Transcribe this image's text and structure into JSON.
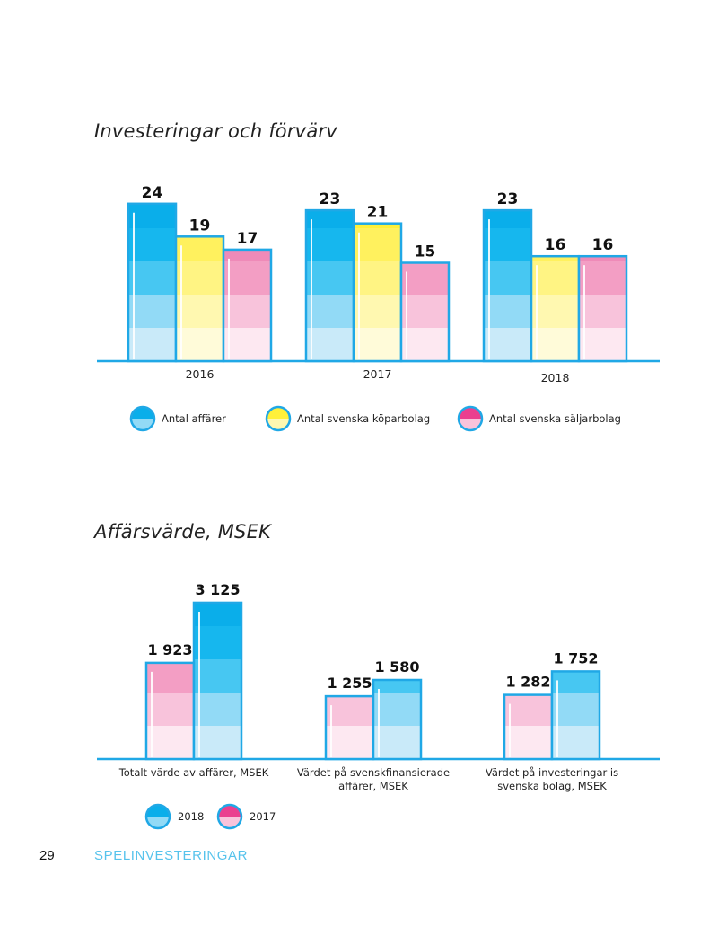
{
  "page": {
    "number": "29",
    "section": "SPELINVESTERINGAR"
  },
  "colors": {
    "blue": "#0fb2ea",
    "yellow": "#fff23a",
    "pink": "#ea5c9c",
    "border": "#20a8e6"
  },
  "chart_data": [
    {
      "type": "bar",
      "title": "Investeringar och förvärv",
      "categories": [
        "2016",
        "2017",
        "2018"
      ],
      "series": [
        {
          "name": "Antal affärer",
          "color": "blue",
          "values": [
            24,
            23,
            23
          ],
          "labels": [
            "24",
            "23",
            "23"
          ]
        },
        {
          "name": "Antal svenska köparbolag",
          "color": "yellow",
          "values": [
            19,
            21,
            16
          ],
          "labels": [
            "19",
            "21",
            "16"
          ]
        },
        {
          "name": "Antal svenska säljarbolag",
          "color": "pink",
          "values": [
            17,
            15,
            16
          ],
          "labels": [
            "17",
            "15",
            "16"
          ]
        }
      ],
      "ylim": [
        0,
        24
      ],
      "legend_position": "bottom"
    },
    {
      "type": "bar",
      "title": "Affärsvärde, MSEK",
      "categories": [
        [
          "Totalt värde av affärer, MSEK"
        ],
        [
          "Värdet på svenskfinansierade",
          "affärer, MSEK"
        ],
        [
          "Värdet på investeringar is",
          "svenska bolag, MSEK"
        ]
      ],
      "series": [
        {
          "name": "2017",
          "color": "pink",
          "values": [
            1923,
            1255,
            1282
          ],
          "labels": [
            "1 923",
            "1 255",
            "1 282"
          ]
        },
        {
          "name": "2018",
          "color": "blue",
          "values": [
            3125,
            1580,
            1752
          ],
          "labels": [
            "3 125",
            "1 580",
            "1 752"
          ]
        }
      ],
      "legend_order": [
        "2018",
        "2017"
      ],
      "ylim": [
        0,
        3125
      ],
      "legend_position": "bottom"
    }
  ]
}
